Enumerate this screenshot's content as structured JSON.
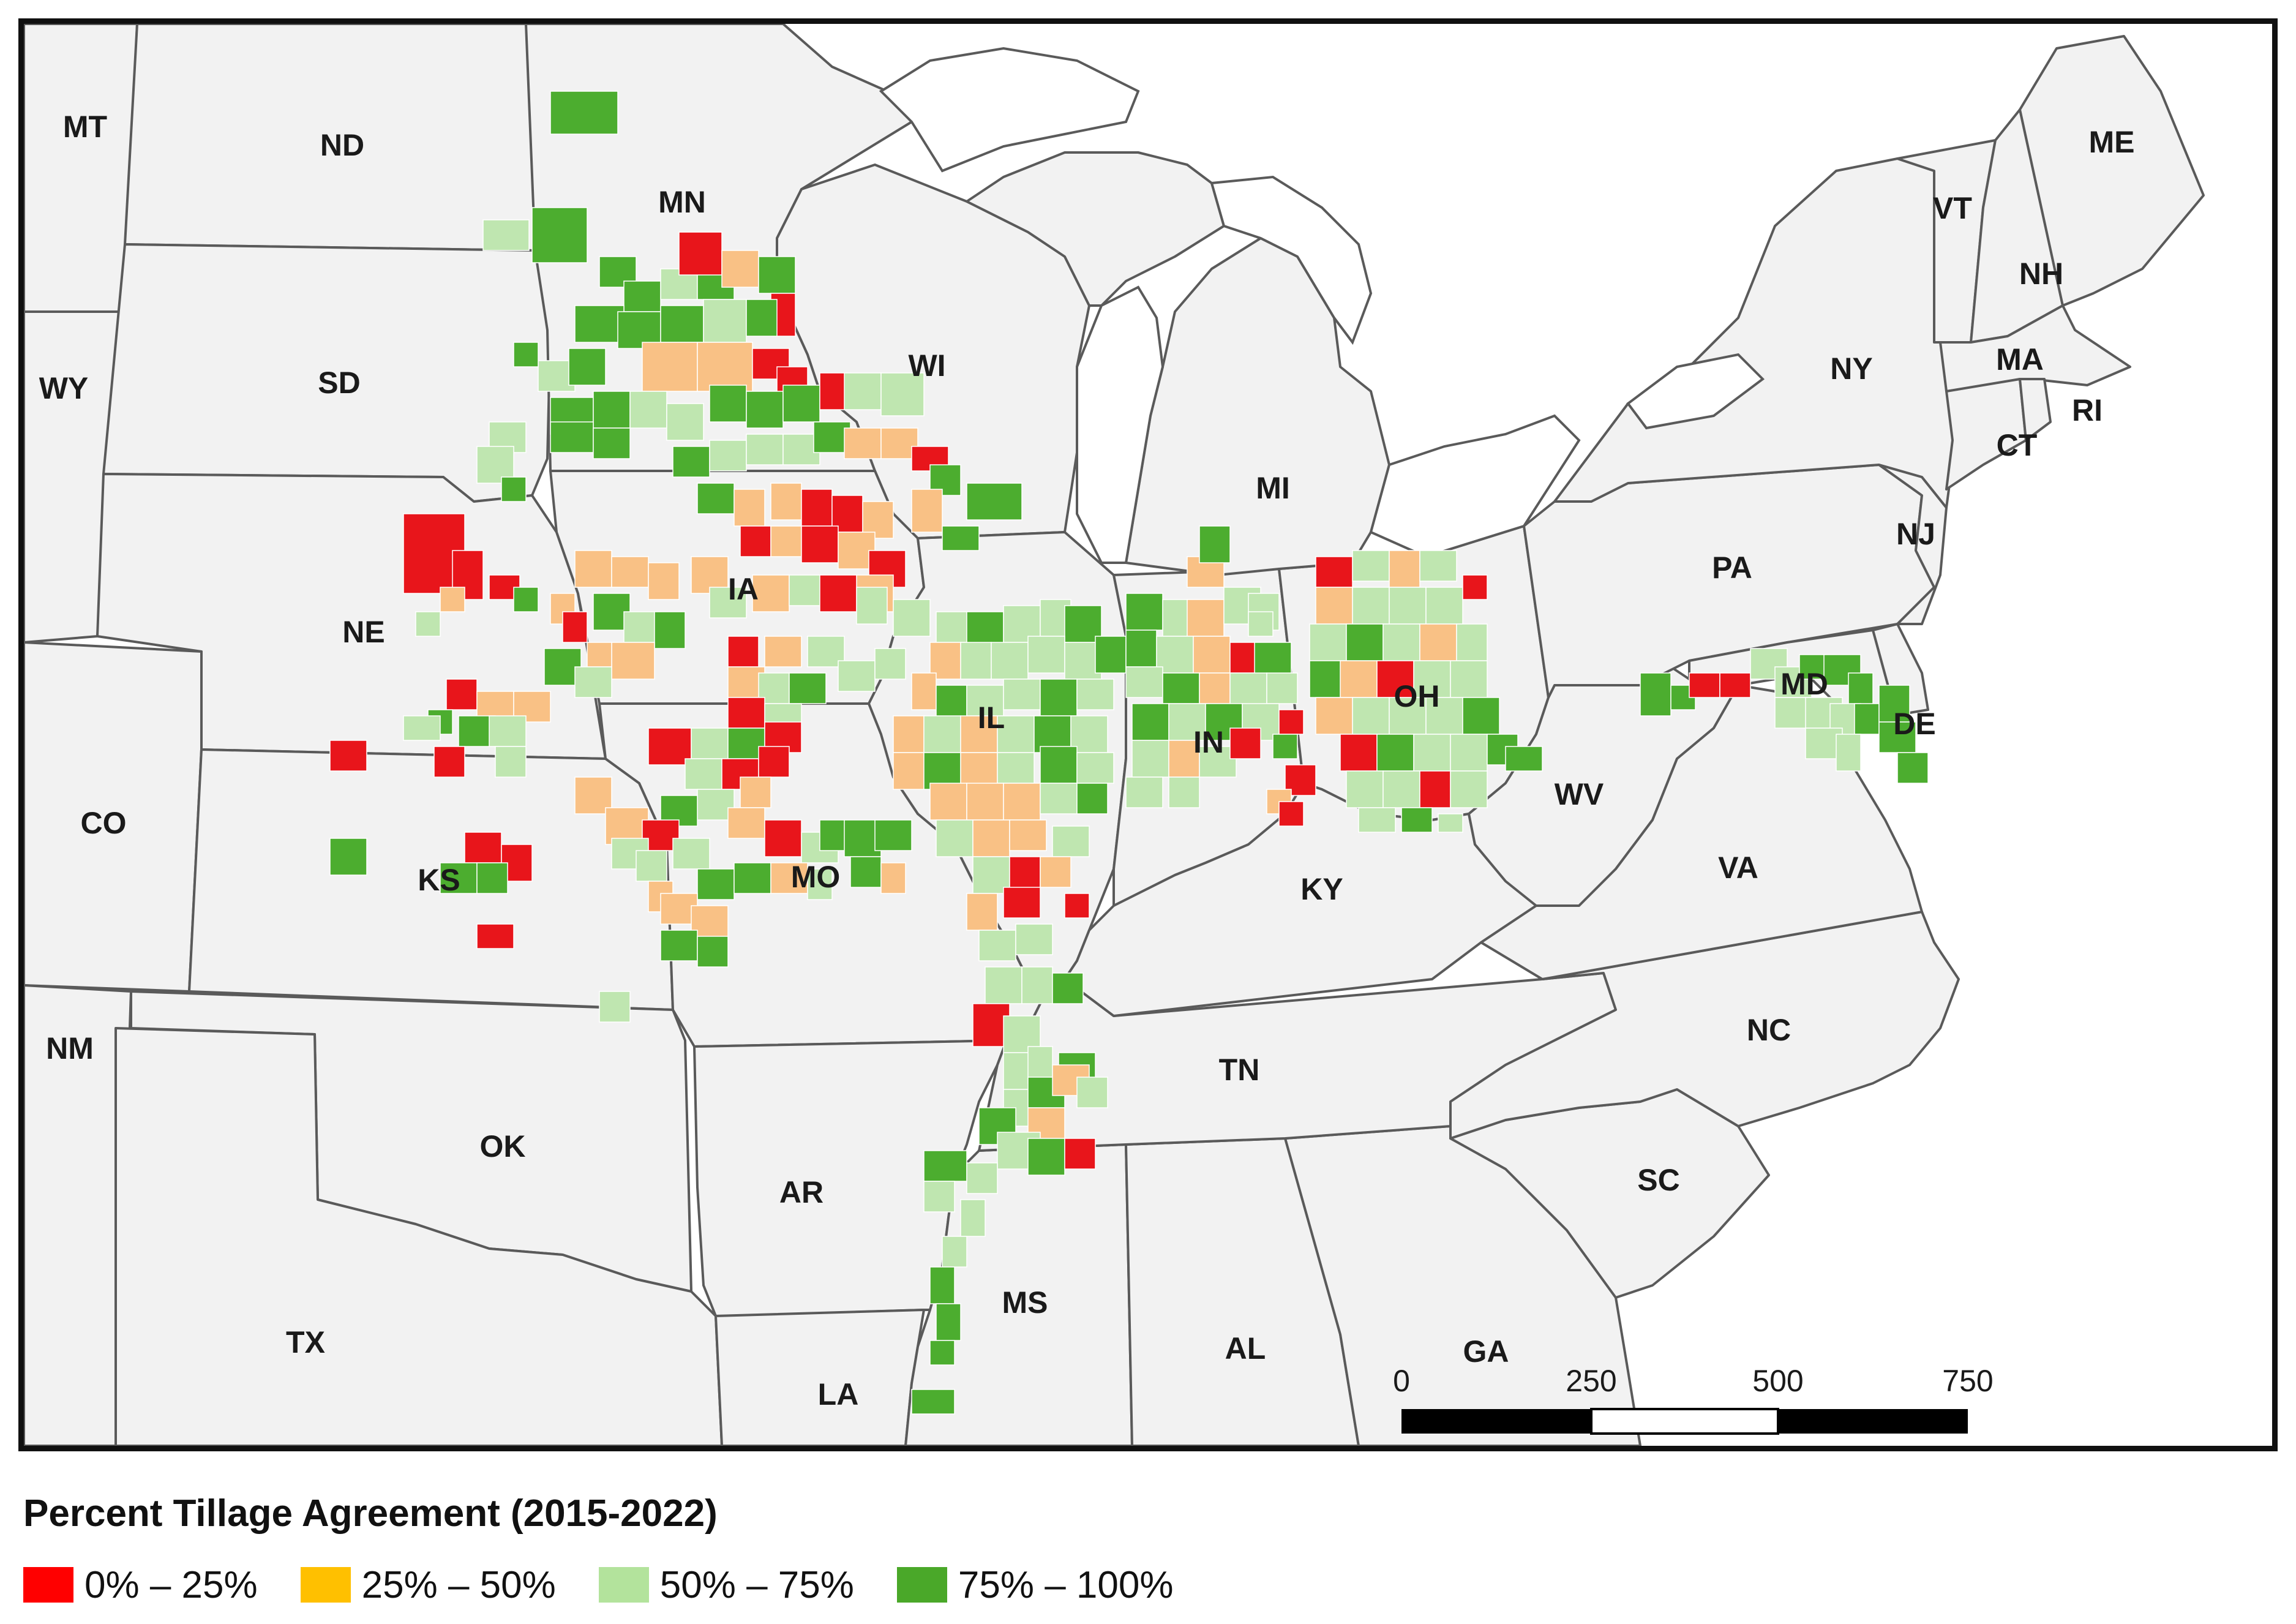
{
  "map": {
    "states": [
      "MT",
      "ND",
      "MN",
      "WY",
      "SD",
      "WI",
      "NE",
      "IA",
      "MI",
      "CO",
      "KS",
      "MO",
      "IL",
      "IN",
      "OH",
      "NM",
      "OK",
      "AR",
      "TX",
      "LA",
      "MS",
      "AL",
      "TN",
      "KY",
      "GA",
      "SC",
      "NC",
      "VA",
      "WV",
      "PA",
      "NY",
      "VT",
      "NH",
      "ME",
      "MA",
      "CT",
      "RI",
      "NJ",
      "MD",
      "DE"
    ],
    "category_colors": {
      "c0": "#e8151b",
      "c1": "#f9c185",
      "c2": "#bfe6b0",
      "c3": "#4cad2f"
    },
    "scale_bar": {
      "ticks": [
        "0",
        "250",
        "500",
        "750"
      ]
    }
  },
  "legend": {
    "title": "Percent Tillage Agreement (2015-2022)",
    "items": [
      {
        "label": "0% – 25%",
        "color": "#ff0000"
      },
      {
        "label": "25% – 50%",
        "color": "#ffc000"
      },
      {
        "label": "50% – 75%",
        "color": "#b3e39c"
      },
      {
        "label": "75% – 100%",
        "color": "#4aa829"
      }
    ]
  }
}
